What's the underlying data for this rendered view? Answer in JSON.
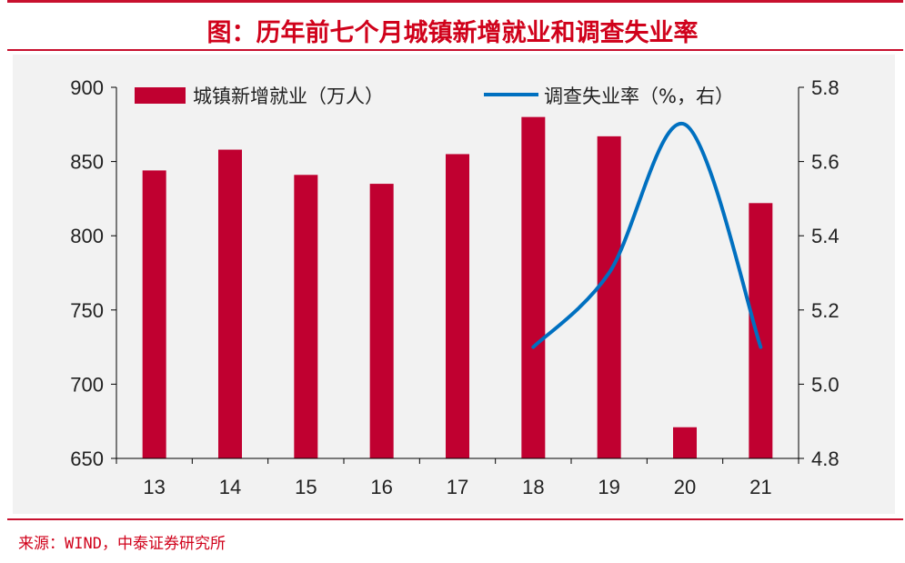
{
  "header": {
    "title": "图：历年前七个月城镇新增就业和调查失业率"
  },
  "footer": {
    "source": "来源：WIND，中泰证券研究所"
  },
  "colors": {
    "bar": "#c00030",
    "line": "#0070c0",
    "title": "#d0021b"
  },
  "chart_data": {
    "type": "bar",
    "categories": [
      "13",
      "14",
      "15",
      "16",
      "17",
      "18",
      "19",
      "20",
      "21"
    ],
    "ylim": [
      650,
      900
    ],
    "yticks": [
      650,
      700,
      750,
      800,
      850,
      900
    ],
    "y2lim": [
      4.8,
      5.8
    ],
    "y2ticks": [
      4.8,
      5.0,
      5.2,
      5.4,
      5.6,
      5.8
    ],
    "grid": false,
    "legend": "top",
    "series": [
      {
        "name": "城镇新增就业（万人）",
        "type": "bar",
        "axis": "left",
        "values": [
          844,
          858,
          841,
          835,
          855,
          880,
          867,
          671,
          822
        ]
      },
      {
        "name": "调查失业率（%，右）",
        "type": "line",
        "axis": "right",
        "values": [
          null,
          null,
          null,
          null,
          null,
          5.1,
          5.3,
          5.7,
          5.1
        ]
      }
    ]
  }
}
